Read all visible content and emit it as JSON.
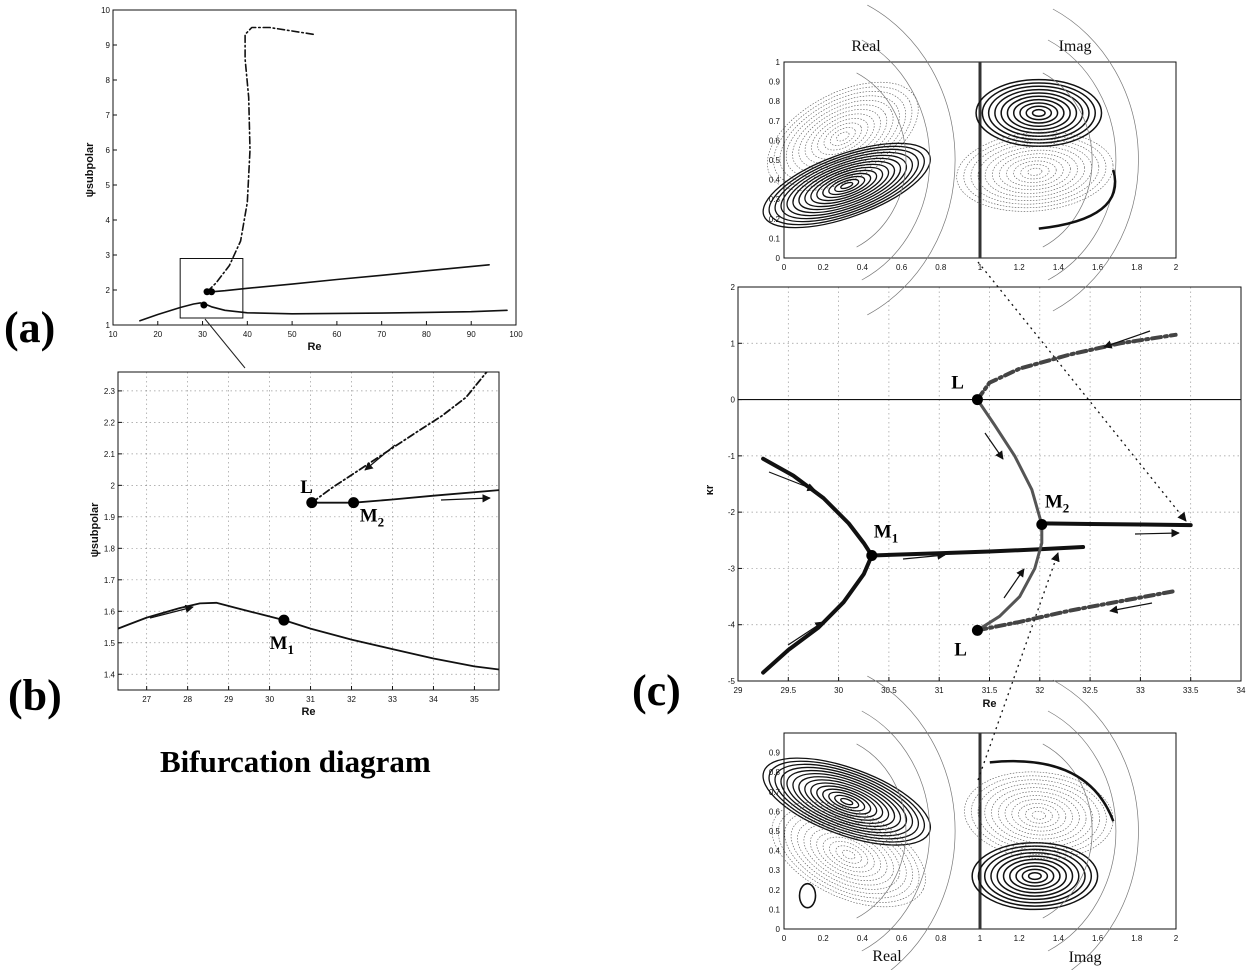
{
  "labels": {
    "panel_a": "(a)",
    "panel_b": "(b)",
    "panel_c": "(c)",
    "caption": "Bifurcation diagram",
    "contour_top_left": "Real",
    "contour_top_right": "Imag",
    "contour_bottom_left": "Real",
    "contour_bottom_right": "Imag"
  },
  "chart_data": [
    {
      "id": "a",
      "type": "line",
      "xlabel": "Re",
      "ylabel": "ψsubpolar",
      "xlim": [
        10,
        100
      ],
      "ylim": [
        1,
        10
      ],
      "xticks": [
        10,
        20,
        30,
        40,
        50,
        60,
        70,
        80,
        90,
        100
      ],
      "yticks": [
        1,
        2,
        3,
        4,
        5,
        6,
        7,
        8,
        9,
        10
      ],
      "grid": false,
      "series": [
        {
          "style": "solid",
          "x": [
            16,
            20,
            25,
            28,
            29.5,
            30.5,
            32,
            35,
            40,
            50,
            60,
            70,
            80,
            90,
            98
          ],
          "y": [
            1.12,
            1.3,
            1.5,
            1.6,
            1.63,
            1.6,
            1.52,
            1.42,
            1.35,
            1.32,
            1.33,
            1.34,
            1.36,
            1.38,
            1.42
          ]
        },
        {
          "style": "solid",
          "x": [
            31,
            32,
            35,
            40,
            50,
            60,
            70,
            80,
            94
          ],
          "y": [
            1.95,
            1.95,
            1.98,
            2.05,
            2.17,
            2.3,
            2.42,
            2.55,
            2.72
          ]
        },
        {
          "style": "dashdot",
          "x": [
            31,
            33,
            36,
            38.5,
            40,
            40.6,
            40.3,
            39.5,
            39.5,
            41,
            45,
            50,
            55
          ],
          "y": [
            1.95,
            2.2,
            2.7,
            3.4,
            4.5,
            6.0,
            7.5,
            8.6,
            9.3,
            9.5,
            9.5,
            9.4,
            9.3
          ]
        }
      ],
      "points": [
        {
          "x": 30.3,
          "y": 1.57
        },
        {
          "x": 31,
          "y": 1.95
        },
        {
          "x": 32,
          "y": 1.95
        }
      ],
      "inset_box": {
        "x": [
          25,
          39
        ],
        "y": [
          1.2,
          2.9
        ]
      }
    },
    {
      "id": "b",
      "type": "line",
      "xlabel": "Re",
      "ylabel": "ψsubpolar",
      "xlim": [
        26.3,
        35.6
      ],
      "ylim": [
        1.35,
        2.36
      ],
      "xticks": [
        27,
        28,
        29,
        30,
        31,
        32,
        33,
        34,
        35
      ],
      "yticks": [
        1.4,
        1.5,
        1.6,
        1.7,
        1.8,
        1.9,
        2,
        2.1,
        2.2,
        2.3
      ],
      "grid": true,
      "series": [
        {
          "style": "solid",
          "x": [
            26.3,
            27,
            27.8,
            28.3,
            28.7,
            29.2,
            29.8,
            30.35,
            31,
            32,
            33,
            34,
            35,
            35.6
          ],
          "y": [
            1.545,
            1.58,
            1.61,
            1.625,
            1.627,
            1.61,
            1.59,
            1.572,
            1.545,
            1.51,
            1.48,
            1.45,
            1.425,
            1.415
          ]
        },
        {
          "style": "solid",
          "x": [
            31.03,
            32.05,
            33,
            34,
            35.6
          ],
          "y": [
            1.945,
            1.945,
            1.955,
            1.967,
            1.985
          ]
        },
        {
          "style": "dashdot",
          "x": [
            31.03,
            31.5,
            32.2,
            32.9,
            33.6,
            34.2,
            34.8,
            35.3
          ],
          "y": [
            1.945,
            1.99,
            2.05,
            2.11,
            2.17,
            2.22,
            2.28,
            2.36
          ]
        }
      ],
      "points": [
        {
          "name": "M1",
          "x": 30.35,
          "y": 1.572
        },
        {
          "name": "L",
          "x": 31.03,
          "y": 1.945
        },
        {
          "name": "M2",
          "x": 32.05,
          "y": 1.945
        }
      ],
      "point_labels": [
        {
          "text": "L",
          "sub": "",
          "x": 30.75,
          "y": 1.975
        },
        {
          "text": "M",
          "sub": "2",
          "x": 32.2,
          "y": 1.885
        },
        {
          "text": "M",
          "sub": "1",
          "x": 30.0,
          "y": 1.48
        }
      ]
    },
    {
      "id": "c",
      "type": "line",
      "xlabel": "Re",
      "ylabel": "κr",
      "xlim": [
        29,
        34
      ],
      "ylim": [
        -5,
        2
      ],
      "xticks": [
        29,
        29.5,
        30,
        30.5,
        31,
        31.5,
        32,
        32.5,
        33,
        33.5,
        34
      ],
      "yticks": [
        -5,
        -4,
        -3,
        -2,
        -1,
        0,
        1,
        2
      ],
      "grid": true,
      "series": [
        {
          "style": "thick",
          "x": [
            29.25,
            29.55,
            29.85,
            30.1,
            30.25,
            30.33
          ],
          "y": [
            -1.05,
            -1.35,
            -1.75,
            -2.2,
            -2.55,
            -2.77
          ]
        },
        {
          "style": "thick",
          "x": [
            30.33,
            30.25,
            30.05,
            29.8,
            29.5,
            29.25
          ],
          "y": [
            -2.77,
            -3.1,
            -3.6,
            -4.05,
            -4.45,
            -4.85
          ]
        },
        {
          "style": "thick",
          "x": [
            30.33,
            31,
            31.5,
            32,
            32.43
          ],
          "y": [
            -2.77,
            -2.73,
            -2.7,
            -2.66,
            -2.62
          ]
        },
        {
          "style": "gray",
          "x": [
            31.38,
            31.55,
            31.75,
            31.92,
            32.02,
            32.02,
            31.95,
            31.8,
            31.6,
            31.38
          ],
          "y": [
            0.0,
            -0.45,
            -1.0,
            -1.6,
            -2.22,
            -2.55,
            -3.0,
            -3.5,
            -3.85,
            -4.1
          ]
        },
        {
          "style": "thick",
          "x": [
            32.02,
            32.5,
            33,
            33.5
          ],
          "y": [
            -2.2,
            -2.21,
            -2.22,
            -2.23
          ]
        },
        {
          "style": "dashdot",
          "x": [
            31.38,
            31.5,
            31.8,
            32.3,
            32.8,
            33.35
          ],
          "y": [
            0.0,
            0.3,
            0.55,
            0.8,
            1.0,
            1.15
          ]
        },
        {
          "style": "dashdot",
          "x": [
            31.38,
            31.8,
            32.3,
            32.9,
            33.35
          ],
          "y": [
            -4.1,
            -3.95,
            -3.75,
            -3.55,
            -3.4
          ]
        }
      ],
      "points": [
        {
          "name": "M1",
          "x": 30.33,
          "y": -2.77
        },
        {
          "name": "L",
          "x": 31.38,
          "y": 0.0
        },
        {
          "name": "M2",
          "x": 32.02,
          "y": -2.22
        },
        {
          "name": "L",
          "x": 31.38,
          "y": -4.1
        }
      ],
      "point_labels": [
        {
          "text": "L",
          "sub": "",
          "x": 31.12,
          "y": 0.2
        },
        {
          "text": "M",
          "sub": "1",
          "x": 30.35,
          "y": -2.45
        },
        {
          "text": "M",
          "sub": "2",
          "x": 32.05,
          "y": -1.92
        },
        {
          "text": "L",
          "sub": "",
          "x": 31.15,
          "y": -4.55
        }
      ]
    },
    {
      "id": "c_top",
      "type": "heatmap",
      "titles": [
        "Real",
        "Imag"
      ],
      "xlim": [
        0,
        2
      ],
      "ylim": [
        0,
        1
      ],
      "xticks": [
        "0",
        "0.2",
        "0.4",
        "0.6",
        "0.8",
        "1",
        "1.2",
        "1.4",
        "1.6",
        "1.8",
        "2"
      ],
      "yticks": [
        "0",
        "0.1",
        "0.2",
        "0.3",
        "0.4",
        "0.5",
        "0.6",
        "0.7",
        "0.8",
        "0.9",
        "1"
      ]
    },
    {
      "id": "c_bottom",
      "type": "heatmap",
      "titles": [
        "Real",
        "Imag"
      ],
      "xlim": [
        0,
        2
      ],
      "ylim": [
        0,
        1
      ],
      "xticks": [
        "0",
        "0.2",
        "0.4",
        "0.6",
        "0.8",
        "1",
        "1.2",
        "1.4",
        "1.6",
        "1.8",
        "2"
      ],
      "yticks": [
        "0",
        "0.1",
        "0.2",
        "0.3",
        "0.4",
        "0.5",
        "0.6",
        "0.7",
        "0.8",
        "0.9"
      ]
    }
  ]
}
